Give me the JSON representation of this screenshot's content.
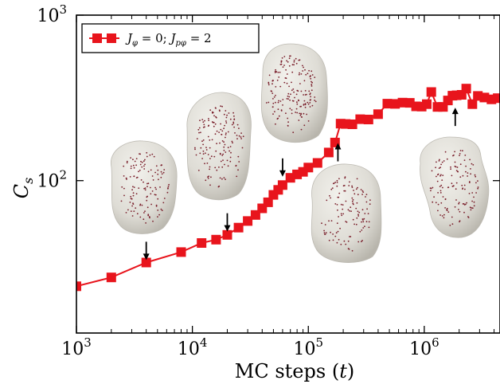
{
  "chart_data": {
    "type": "line",
    "xscale": "log",
    "yscale": "log",
    "xlim": [
      1000,
      4500000
    ],
    "ylim": [
      12,
      1000
    ],
    "xlabel": "MC steps (t)",
    "ylabel": "C_s",
    "xticks": [
      {
        "value": 1000,
        "base": "10",
        "exp": "3"
      },
      {
        "value": 10000,
        "base": "10",
        "exp": "4"
      },
      {
        "value": 100000,
        "base": "10",
        "exp": "5"
      },
      {
        "value": 1000000,
        "base": "10",
        "exp": "6"
      }
    ],
    "yticks": [
      {
        "value": 100,
        "base": "10",
        "exp": "2"
      },
      {
        "value": 1000,
        "base": "10",
        "exp": "3"
      }
    ],
    "legend": {
      "position": "top-left",
      "entries": [
        "J_φ = 0; J_pφ = 2"
      ]
    },
    "series": [
      {
        "name": "J_φ = 0; J_pφ = 2",
        "color": "#e8141c",
        "marker": "square",
        "x": [
          1000,
          2000,
          4000,
          8000,
          12000,
          16000,
          20000,
          25000,
          30000,
          35000,
          40000,
          45000,
          50000,
          55000,
          60000,
          70000,
          80000,
          90000,
          100000,
          120000,
          150000,
          170000,
          190000,
          210000,
          240000,
          280000,
          330000,
          400000,
          480000,
          560000,
          650000,
          750000,
          850000,
          950000,
          1050000,
          1150000,
          1300000,
          1450000,
          1600000,
          1750000,
          1900000,
          2100000,
          2300000,
          2600000,
          2900000,
          3300000,
          3800000,
          4300000
        ],
        "y": [
          23,
          26,
          32,
          37,
          42,
          44,
          47,
          52,
          57,
          62,
          68,
          74,
          82,
          88,
          94,
          104,
          109,
          113,
          120,
          128,
          148,
          170,
          221,
          220,
          219,
          235,
          234,
          252,
          292,
          291,
          296,
          295,
          281,
          280,
          290,
          343,
          279,
          279,
          305,
          326,
          328,
          330,
          360,
          290,
          325,
          318,
          310,
          315
        ]
      }
    ],
    "annotations": [
      {
        "type": "arrow-down",
        "x": 4000,
        "y": 37
      },
      {
        "type": "arrow-down",
        "x": 20000,
        "y": 55
      },
      {
        "type": "arrow-down",
        "x": 60000,
        "y": 118
      },
      {
        "type": "arrow-up",
        "x": 180000,
        "y": 151
      },
      {
        "type": "arrow-up",
        "x": 1850000,
        "y": 247
      }
    ]
  }
}
